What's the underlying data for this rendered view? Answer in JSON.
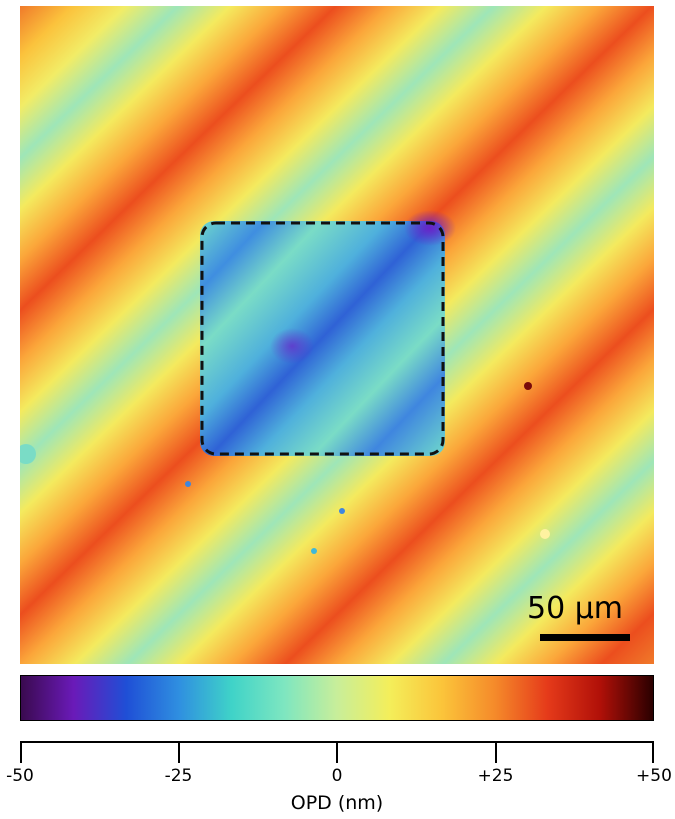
{
  "scale_bar": {
    "label": "50 µm"
  },
  "colorbar": {
    "colors": [
      "#3a0a4f",
      "#6a1ab8",
      "#1f4fd6",
      "#2f8fe0",
      "#3fd3c8",
      "#7ee6c0",
      "#c8ee9a",
      "#f4ee5a",
      "#fbc43a",
      "#f58a2a",
      "#e53a1a",
      "#b01008",
      "#2a0000"
    ],
    "ticks": [
      "-50",
      "-25",
      "0",
      "+25",
      "+50"
    ],
    "tick_values": [
      -50,
      -25,
      0,
      25,
      50
    ],
    "range": [
      -50,
      50
    ],
    "axis_label": "OPD (nm)"
  },
  "map_colors": {
    "high": "#ee4a1e",
    "mid_high": "#fba23a",
    "mid": "#f6e65a",
    "low": "#72dcc8",
    "lower": "#3a78d8",
    "lowest": "#5a2ad0",
    "outline": "#111111"
  }
}
